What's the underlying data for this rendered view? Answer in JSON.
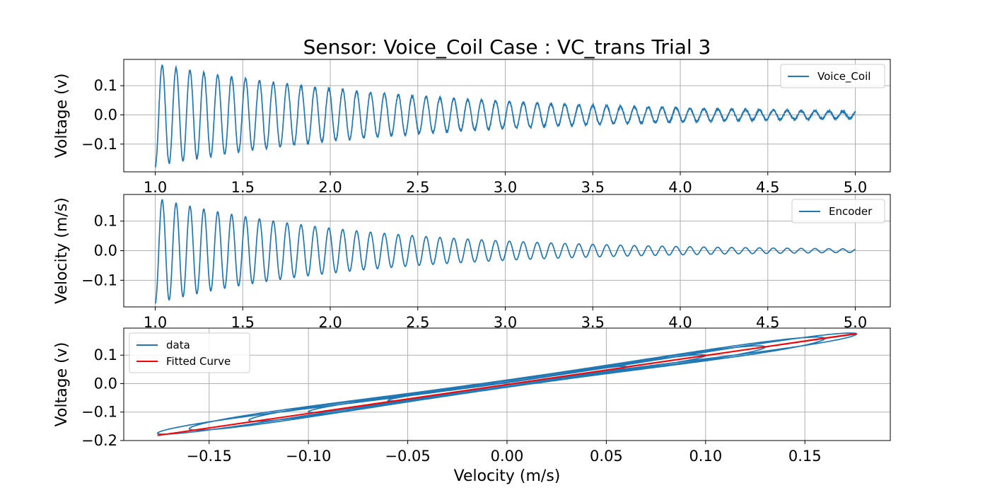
{
  "figure": {
    "title": "Sensor: Voice_Coil Case : VC_trans Trial 3"
  },
  "chart_data": [
    {
      "id": "voltage-time",
      "type": "line",
      "xlabel": "",
      "ylabel": "Voltage (v)",
      "xlim": [
        0.82,
        5.2
      ],
      "ylim": [
        -0.195,
        0.19
      ],
      "xticks": [
        1.0,
        1.5,
        2.0,
        2.5,
        3.0,
        3.5,
        4.0,
        4.5,
        5.0
      ],
      "yticks": [
        -0.1,
        0.0,
        0.1
      ],
      "grid": true,
      "legend": "top-right",
      "series": [
        {
          "name": "Voice_Coil",
          "color": "#1f77b4",
          "signal": {
            "t_start": 1.0,
            "t_end": 5.0,
            "amplitude_start": 0.175,
            "amplitude_end": 0.012,
            "frequency_hz": 12.6,
            "noise": 0.0035
          }
        }
      ]
    },
    {
      "id": "velocity-time",
      "type": "line",
      "xlabel": "",
      "ylabel": "Velocity (m/s)",
      "xlim": [
        0.82,
        5.2
      ],
      "ylim": [
        -0.19,
        0.19
      ],
      "xticks": [
        1.0,
        1.5,
        2.0,
        2.5,
        3.0,
        3.5,
        4.0,
        4.5,
        5.0
      ],
      "yticks": [
        -0.1,
        0.0,
        0.1
      ],
      "grid": true,
      "legend": "top-right",
      "series": [
        {
          "name": "Encoder",
          "color": "#1f77b4",
          "signal": {
            "t_start": 1.0,
            "t_end": 5.0,
            "amplitude_start": 0.178,
            "amplitude_end": 0.006,
            "frequency_hz": 12.6,
            "noise": 0.0
          }
        }
      ]
    },
    {
      "id": "voltage-velocity",
      "type": "line",
      "xlabel": "Velocity (m/s)",
      "ylabel": "Voltage (v)",
      "xlim": [
        -0.193,
        0.193
      ],
      "ylim": [
        -0.2,
        0.195
      ],
      "xticks": [
        -0.15,
        -0.1,
        -0.05,
        0.0,
        0.05,
        0.1,
        0.15
      ],
      "yticks": [
        -0.2,
        -0.1,
        0.0,
        0.1
      ],
      "grid": true,
      "legend": "top-left",
      "series": [
        {
          "name": "data",
          "color": "#1f77b4",
          "loops": [
            {
              "amplitude": 0.176,
              "hysteresis": 0.012
            },
            {
              "amplitude": 0.16,
              "hysteresis": 0.02
            },
            {
              "amplitude": 0.13,
              "hysteresis": 0.016
            },
            {
              "amplitude": 0.1,
              "hysteresis": 0.01
            },
            {
              "amplitude": 0.06,
              "hysteresis": 0.006
            }
          ],
          "slope": 0.99
        },
        {
          "name": "Fitted Curve",
          "color": "#ff0000",
          "x": [
            -0.176,
            0.176
          ],
          "y": [
            -0.182,
            0.176
          ]
        }
      ]
    }
  ]
}
